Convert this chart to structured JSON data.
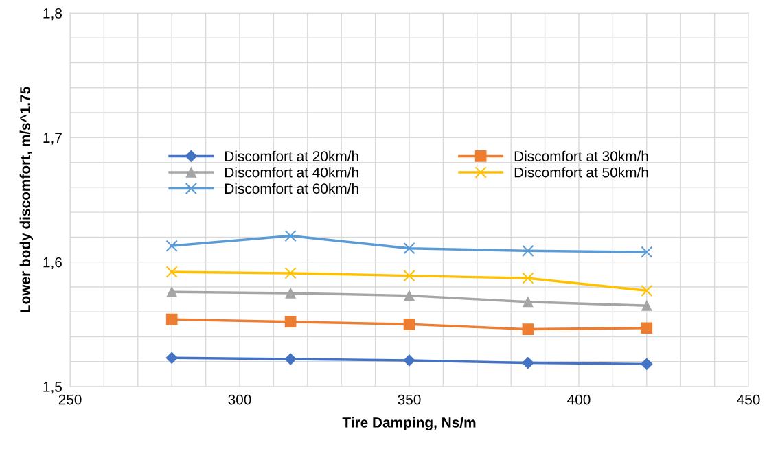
{
  "chart_data": {
    "type": "line",
    "xlabel": "Tire Damping, Ns/m",
    "ylabel": "Lower body discomfort, m/s^1.75",
    "series": [
      {
        "name": "Discomfort at 20km/h",
        "color": "#4472c4",
        "marker": "diamond",
        "x": [
          280,
          315,
          350,
          385,
          420
        ],
        "values": [
          1.523,
          1.522,
          1.521,
          1.519,
          1.518
        ]
      },
      {
        "name": "Discomfort at 30km/h",
        "color": "#ed7d31",
        "marker": "square",
        "x": [
          280,
          315,
          350,
          385,
          420
        ],
        "values": [
          1.554,
          1.552,
          1.55,
          1.546,
          1.547
        ]
      },
      {
        "name": "Discomfort at 40km/h",
        "color": "#a5a5a5",
        "marker": "triangle",
        "x": [
          280,
          315,
          350,
          385,
          420
        ],
        "values": [
          1.576,
          1.575,
          1.573,
          1.568,
          1.565
        ]
      },
      {
        "name": "Discomfort at 50km/h",
        "color": "#ffc000",
        "marker": "cross",
        "x": [
          280,
          315,
          350,
          385,
          420
        ],
        "values": [
          1.592,
          1.591,
          1.589,
          1.587,
          1.577
        ]
      },
      {
        "name": "Discomfort at 60km/h",
        "color": "#5b9bd5",
        "marker": "cross",
        "x": [
          280,
          315,
          350,
          385,
          420
        ],
        "values": [
          1.613,
          1.621,
          1.611,
          1.609,
          1.608
        ]
      }
    ],
    "xlim": [
      250,
      450
    ],
    "xticks": [
      250,
      {
        "value": 260,
        "label": null
      },
      {
        "value": 270,
        "label": null
      },
      {
        "value": 280,
        "label": null
      },
      {
        "value": 290,
        "label": null
      },
      300,
      {
        "value": 310,
        "label": null
      },
      {
        "value": 320,
        "label": null
      },
      {
        "value": 330,
        "label": null
      },
      {
        "value": 340,
        "label": null
      },
      350,
      {
        "value": 360,
        "label": null
      },
      {
        "value": 370,
        "label": null
      },
      {
        "value": 380,
        "label": null
      },
      {
        "value": 390,
        "label": null
      },
      400,
      {
        "value": 410,
        "label": null
      },
      {
        "value": 420,
        "label": null
      },
      {
        "value": 430,
        "label": null
      },
      {
        "value": 440,
        "label": null
      },
      450
    ],
    "ylim": [
      1.5,
      1.8
    ],
    "yticks": [
      {
        "value": 1.5,
        "label": "1,5"
      },
      {
        "value": 1.52,
        "label": null
      },
      {
        "value": 1.54,
        "label": null
      },
      {
        "value": 1.56,
        "label": null
      },
      {
        "value": 1.58,
        "label": null
      },
      {
        "value": 1.6,
        "label": "1,6"
      },
      {
        "value": 1.62,
        "label": null
      },
      {
        "value": 1.64,
        "label": null
      },
      {
        "value": 1.66,
        "label": null
      },
      {
        "value": 1.68,
        "label": null
      },
      {
        "value": 1.7,
        "label": "1,7"
      },
      {
        "value": 1.72,
        "label": null
      },
      {
        "value": 1.74,
        "label": null
      },
      {
        "value": 1.76,
        "label": null
      },
      {
        "value": 1.78,
        "label": null
      },
      {
        "value": 1.8,
        "label": "1,8"
      }
    ],
    "grid": true,
    "legend": "center",
    "line_style": "solid"
  }
}
